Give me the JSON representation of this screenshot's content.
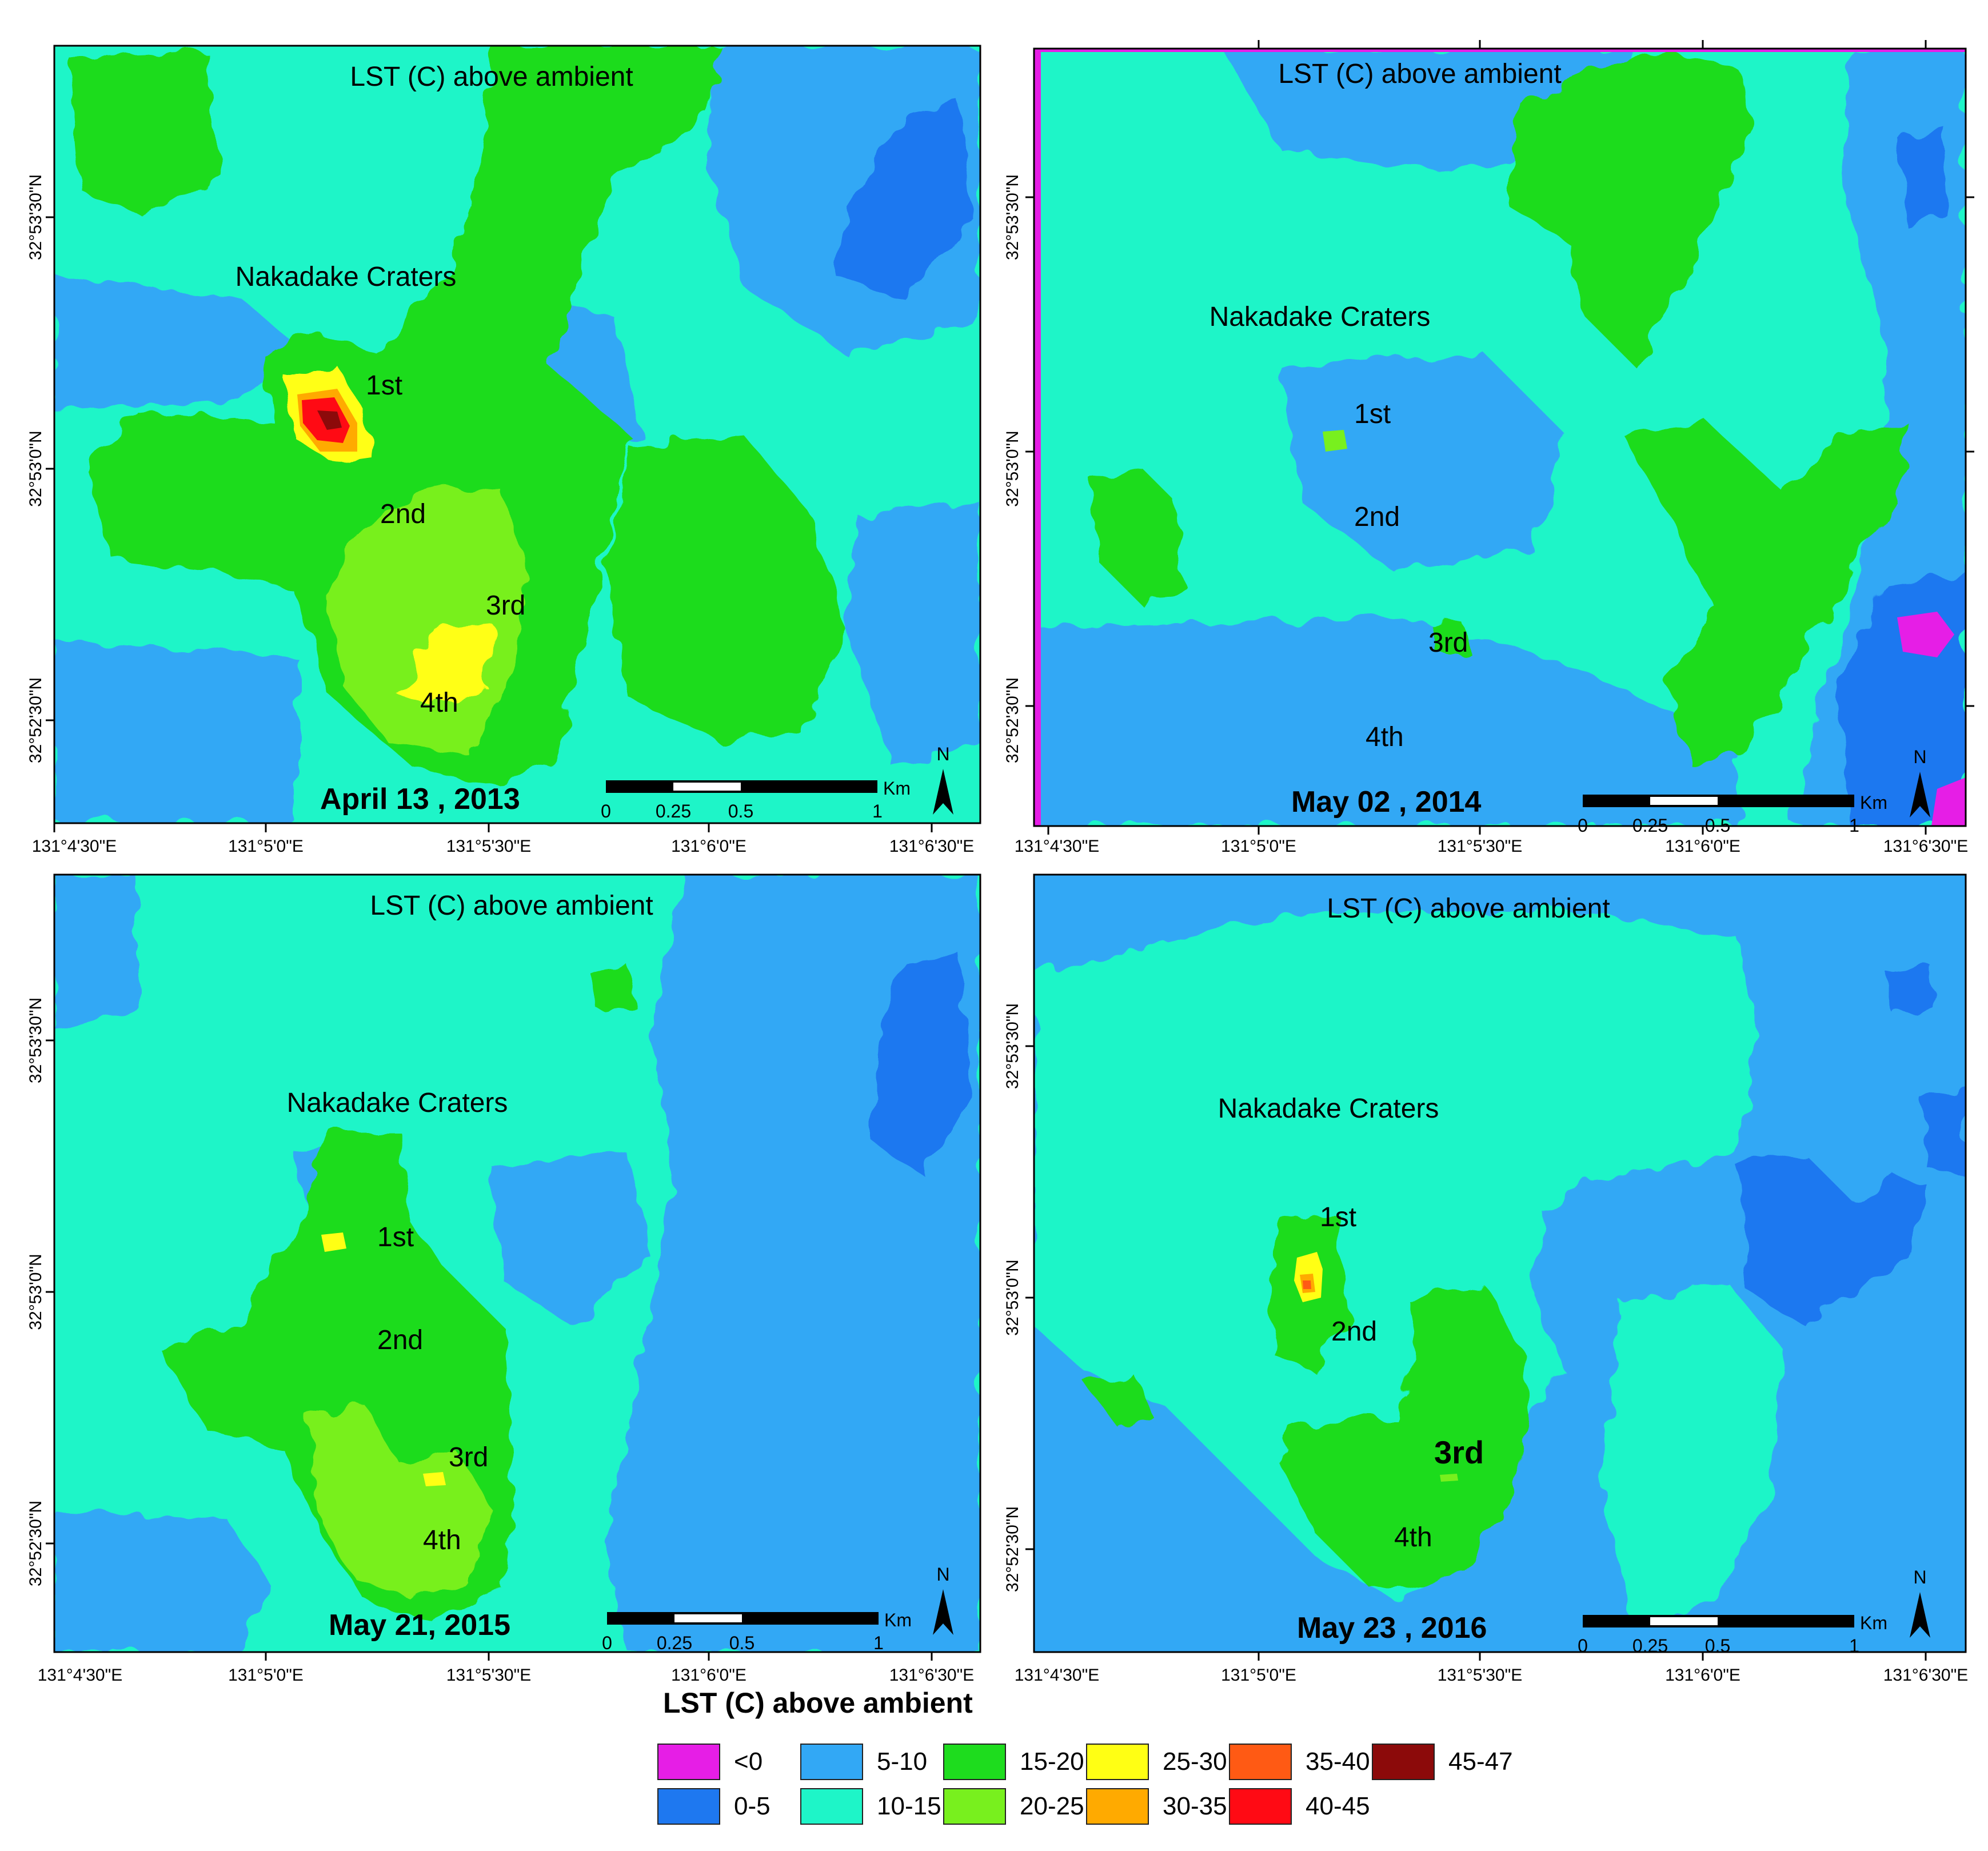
{
  "class_colors": {
    "lt0": "#e61ee6",
    "c0_5": "#1e78f0",
    "c5_10": "#32a8f5",
    "c10_15": "#1ef5c8",
    "c15_20": "#1edc1e",
    "c20_25": "#78f01e",
    "c25_30": "#ffff14",
    "c30_35": "#ffaa00",
    "c35_40": "#ff5a14",
    "c40_45": "#ff0a14",
    "c45_47": "#8c0a0a"
  },
  "panels": [
    {
      "id": "p1",
      "title": "LST (C) above ambient",
      "date": "April 13 , 2013",
      "crater_group_label": "Nakadake Craters",
      "crater_labels": [
        "1st",
        "2nd",
        "3rd",
        "4th"
      ],
      "lat_labels": [
        "32°53'30\"N",
        "32°53'0\"N",
        "32°52'30\"N"
      ],
      "lon_labels": [
        "131°4'30\"E",
        "131°5'0\"E",
        "131°5'30\"E",
        "131°6'0\"E",
        "131°6'30\"E"
      ],
      "scale_ticks": [
        "0",
        "0.25",
        "0.5",
        "1"
      ],
      "scale_unit": "Km",
      "north_label": "N"
    },
    {
      "id": "p2",
      "title": "LST (C) above ambient",
      "date": "May 02 , 2014",
      "crater_group_label": "Nakadake Craters",
      "crater_labels": [
        "1st",
        "2nd",
        "3rd",
        "4th"
      ],
      "lat_labels": [
        "32°53'30\"N",
        "32°53'0\"N",
        "32°52'30\"N"
      ],
      "lon_labels": [
        "131°4'30\"E",
        "131°5'0\"E",
        "131°5'30\"E",
        "131°6'0\"E",
        "131°6'30\"E"
      ],
      "scale_ticks": [
        "0",
        "0.25",
        "0.5",
        "1"
      ],
      "scale_unit": "Km",
      "north_label": "N"
    },
    {
      "id": "p3",
      "title": "LST (C) above ambient",
      "date": "May 21, 2015",
      "crater_group_label": "Nakadake Craters",
      "crater_labels": [
        "1st",
        "2nd",
        "3rd",
        "4th"
      ],
      "lat_labels": [
        "32°53'30\"N",
        "32°53'0\"N",
        "32°52'30\"N"
      ],
      "lon_labels": [
        "131°4'30\"E",
        "131°5'0\"E",
        "131°5'30\"E",
        "131°6'0\"E",
        "131°6'30\"E"
      ],
      "scale_ticks": [
        "0",
        "0.25",
        "0.5",
        "1"
      ],
      "scale_unit": "Km",
      "north_label": "N"
    },
    {
      "id": "p4",
      "title": "LST (C) above ambient",
      "date": "May 23 , 2016",
      "crater_group_label": "Nakadake Craters",
      "crater_labels": [
        "1st",
        "2nd",
        "3rd",
        "4th"
      ],
      "lat_labels": [
        "32°53'30\"N",
        "32°53'0\"N",
        "32°52'30\"N"
      ],
      "lon_labels": [
        "131°4'30\"E",
        "131°5'0\"E",
        "131°5'30\"E",
        "131°6'0\"E",
        "131°6'30\"E"
      ],
      "scale_ticks": [
        "0",
        "0.25",
        "0.5",
        "1"
      ],
      "scale_unit": "Km",
      "north_label": "N"
    }
  ],
  "legend": {
    "title": "LST (C) above ambient",
    "items": [
      {
        "label": "<0",
        "color_key": "lt0"
      },
      {
        "label": "0-5",
        "color_key": "c0_5"
      },
      {
        "label": "5-10",
        "color_key": "c5_10"
      },
      {
        "label": "10-15",
        "color_key": "c10_15"
      },
      {
        "label": "15-20",
        "color_key": "c15_20"
      },
      {
        "label": "20-25",
        "color_key": "c20_25"
      },
      {
        "label": "25-30",
        "color_key": "c25_30"
      },
      {
        "label": "30-35",
        "color_key": "c30_35"
      },
      {
        "label": "35-40",
        "color_key": "c35_40"
      },
      {
        "label": "40-45",
        "color_key": "c40_45"
      },
      {
        "label": "45-47",
        "color_key": "c45_47"
      }
    ]
  }
}
